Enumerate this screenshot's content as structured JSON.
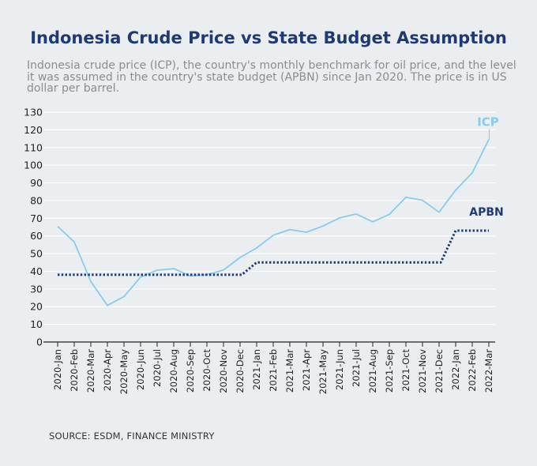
{
  "colors": {
    "background": "#ebeef1",
    "title": "#1f3a73",
    "icp": "#88cbeb",
    "apbn": "#1f3a73",
    "grid": "#ffffff",
    "axis": "#222222"
  },
  "source": "SOURCE: ESDM, FINANCE MINISTRY",
  "chart_data": {
    "type": "line",
    "title": "Indonesia Crude Price vs State Budget Assumption",
    "subtitle": "Indonesia crude price (ICP), the country's monthly benchmark for oil price, and the level it was assumed in the country's state budget (APBN) since Jan 2020. The price is in US dollar per barrel.",
    "xlabel": "",
    "ylabel": "",
    "ylim": [
      0,
      130
    ],
    "yticks": [
      0,
      10,
      20,
      30,
      40,
      50,
      60,
      70,
      80,
      90,
      100,
      110,
      120,
      130
    ],
    "grid": true,
    "legend": "direct labels at line ends",
    "categories": [
      "2020-Jan",
      "2020-Feb",
      "2020-Mar",
      "2020-Apr",
      "2020-May",
      "2020-Jun",
      "2020-Jul",
      "2020-Aug",
      "2020-Sep",
      "2020-Oct",
      "2020-Nov",
      "2020-Dec",
      "2021-Jan",
      "2021-Feb",
      "2021-Mar",
      "2021-Apr",
      "2021-May",
      "2021-Jun",
      "2021-Jul",
      "2021-Aug",
      "2021-Sep",
      "2021-Oct",
      "2021-Nov",
      "2021-Dec",
      "2022-Jan",
      "2022-Feb",
      "2022-Mar"
    ],
    "series": [
      {
        "name": "ICP",
        "style": "solid",
        "values": [
          65.4,
          56.6,
          34.2,
          20.7,
          25.7,
          36.7,
          40.6,
          41.5,
          37.4,
          38.1,
          40.7,
          47.8,
          53.2,
          60.4,
          63.6,
          62.1,
          65.6,
          70.2,
          72.4,
          68.0,
          72.2,
          81.9,
          80.2,
          73.4,
          85.9,
          95.7,
          114.6
        ]
      },
      {
        "name": "APBN",
        "style": "dotted",
        "values": [
          38,
          38,
          38,
          38,
          38,
          38,
          38,
          38,
          38,
          38,
          38,
          38,
          45,
          45,
          45,
          45,
          45,
          45,
          45,
          45,
          45,
          45,
          45,
          45,
          63,
          63,
          63
        ]
      }
    ]
  }
}
